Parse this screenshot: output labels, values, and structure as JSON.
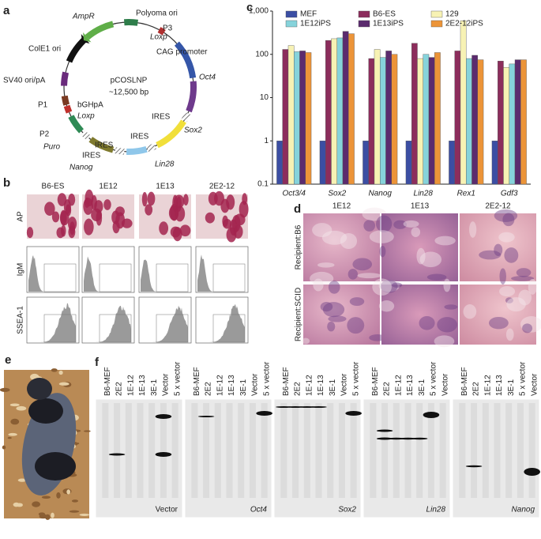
{
  "panel_letters": [
    "a",
    "b",
    "c",
    "d",
    "e",
    "f"
  ],
  "plasmid": {
    "labels": [
      "Polyoma ori",
      "P3",
      "Loxp",
      "AmpR",
      "CAG promoter",
      "ColE1 ori",
      "Oct4",
      "pCOSLNP",
      "~12,500 bp",
      "SV40 ori/pA",
      "P1",
      "bGHpA",
      "Loxp",
      "IRES",
      "P2",
      "Sox2",
      "IRES",
      "Puro",
      "IRES",
      "IRES",
      "Lin28",
      "Nanog"
    ]
  },
  "panel_b": {
    "columns": [
      "B6-ES",
      "1E12",
      "1E13",
      "2E2-12"
    ],
    "rows": [
      "AP",
      "IgM",
      "SSEA-1"
    ]
  },
  "chart_data": {
    "type": "bar",
    "log": true,
    "categories": [
      "Oct3/4",
      "Sox2",
      "Nanog",
      "Lin28",
      "Rex1",
      "Gdf3"
    ],
    "series": [
      {
        "name": "MEF",
        "color": "#3b4ea3",
        "values": [
          1,
          1,
          1,
          1,
          1,
          1
        ]
      },
      {
        "name": "B6-ES",
        "color": "#8c2d5c",
        "values": [
          130,
          210,
          80,
          180,
          120,
          70
        ]
      },
      {
        "name": "129",
        "color": "#f7f2b4",
        "values": [
          160,
          230,
          130,
          80,
          600,
          50
        ]
      },
      {
        "name": "1E12iPS",
        "color": "#86d3db",
        "values": [
          115,
          240,
          85,
          100,
          80,
          60
        ]
      },
      {
        "name": "1E13iPS",
        "color": "#5b2b6e",
        "values": [
          120,
          340,
          120,
          85,
          95,
          75
        ]
      },
      {
        "name": "2E2-12iPS",
        "color": "#ec9438",
        "values": [
          110,
          300,
          100,
          110,
          75,
          75
        ]
      }
    ],
    "ylim": [
      0.1,
      1000
    ],
    "yticks": [
      0.1,
      1,
      10,
      100,
      {
        "value": 1000,
        "label": "1,000"
      }
    ]
  },
  "panel_d": {
    "columns": [
      "1E12",
      "1E13",
      "2E2-12"
    ],
    "rows": [
      "Recipient:B6",
      "Recipient:SCID"
    ]
  },
  "panel_f": {
    "blots": [
      {
        "lanes": [
          "B6-MEF",
          "2E2",
          "1E-12",
          "1E-13",
          "3E-1",
          "Vector",
          "5 x vector"
        ],
        "probe": "Vector"
      },
      {
        "lanes": [
          "B6-MEF",
          "2E2",
          "1E-12",
          "1E-13",
          "3E-1",
          "Vector",
          "5 x vector"
        ],
        "probe": "Oct4"
      },
      {
        "lanes": [
          "B6-MEF",
          "2E2",
          "1E-12",
          "1E-13",
          "3E-1",
          "Vector",
          "5 x vector"
        ],
        "probe": "Sox2"
      },
      {
        "lanes": [
          "B6-MEF",
          "2E2",
          "1E-12",
          "1E-13",
          "3E-1",
          "5 x vector",
          "Vector"
        ],
        "probe": "Lin28"
      },
      {
        "lanes": [
          "B6-MEF",
          "2E2",
          "1E-12",
          "1E-13",
          "3E-1",
          "5 x vector",
          "Vector"
        ],
        "probe": "Nanog"
      }
    ]
  }
}
